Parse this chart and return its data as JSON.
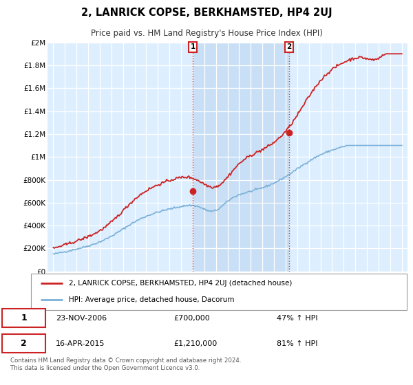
{
  "title": "2, LANRICK COPSE, BERKHAMSTED, HP4 2UJ",
  "subtitle": "Price paid vs. HM Land Registry's House Price Index (HPI)",
  "hpi_color": "#7ab0d8",
  "price_color": "#cc2222",
  "background_color": "#ffffff",
  "plot_bg_color": "#ddeeff",
  "shade_color": "#c8dff5",
  "grid_color": "#ffffff",
  "ylim": [
    0,
    2000000
  ],
  "yticks": [
    0,
    200000,
    400000,
    600000,
    800000,
    1000000,
    1200000,
    1400000,
    1600000,
    1800000,
    2000000
  ],
  "ytick_labels": [
    "£0",
    "£200K",
    "£400K",
    "£600K",
    "£800K",
    "£1M",
    "£1.2M",
    "£1.4M",
    "£1.6M",
    "£1.8M",
    "£2M"
  ],
  "sale1_date_num": 2007.0,
  "sale1_price": 700000,
  "sale1_label": "1",
  "sale2_date_num": 2015.3,
  "sale2_price": 1210000,
  "sale2_label": "2",
  "legend_line1": "2, LANRICK COPSE, BERKHAMSTED, HP4 2UJ (detached house)",
  "legend_line2": "HPI: Average price, detached house, Dacorum",
  "table_row1": [
    "1",
    "23-NOV-2006",
    "£700,000",
    "47% ↑ HPI"
  ],
  "table_row2": [
    "2",
    "16-APR-2015",
    "£1,210,000",
    "81% ↑ HPI"
  ],
  "footnote": "Contains HM Land Registry data © Crown copyright and database right 2024.\nThis data is licensed under the Open Government Licence v3.0."
}
